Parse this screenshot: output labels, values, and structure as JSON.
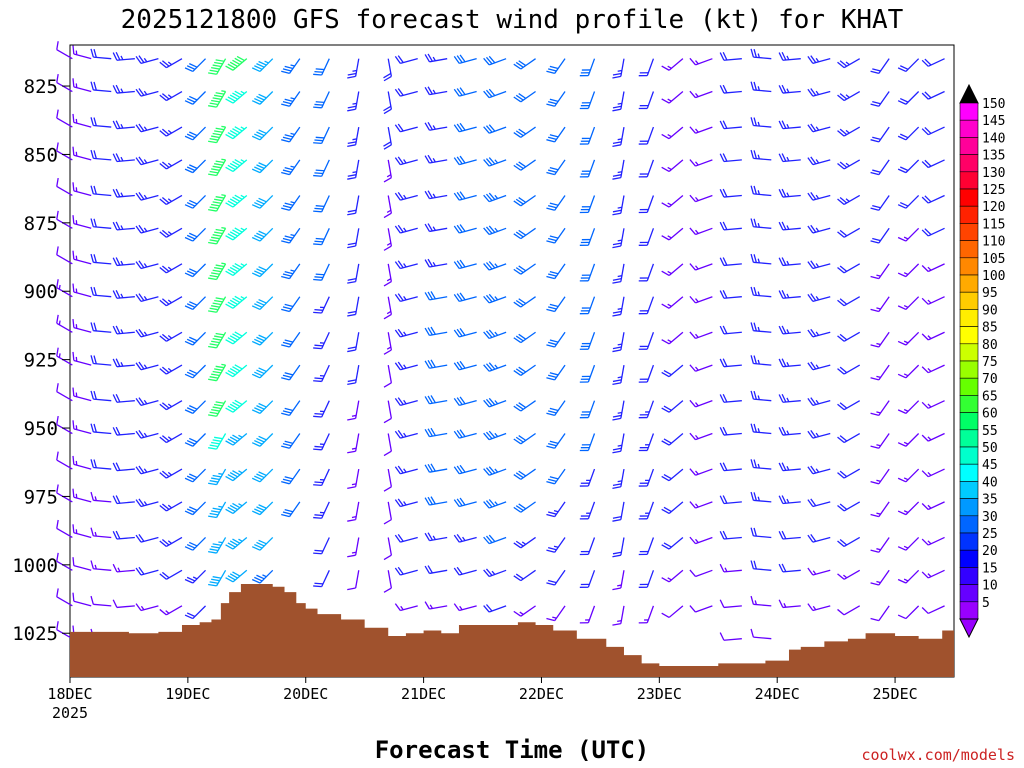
{
  "chart_data": {
    "type": "wind-barb-time-height",
    "title": "2025121800 GFS forecast wind profile (kt) for KHAT",
    "xlabel": "Forecast Time (UTC)",
    "ylabel": "",
    "credit": "coolwx.com/models",
    "x_ticks": [
      {
        "label": "18DEC",
        "sub": "2025",
        "day": 0
      },
      {
        "label": "19DEC",
        "day": 1
      },
      {
        "label": "20DEC",
        "day": 2
      },
      {
        "label": "21DEC",
        "day": 3
      },
      {
        "label": "22DEC",
        "day": 4
      },
      {
        "label": "23DEC",
        "day": 5
      },
      {
        "label": "24DEC",
        "day": 6
      },
      {
        "label": "25DEC",
        "day": 7
      }
    ],
    "xlim_days": [
      0,
      7.5
    ],
    "ylim_hpa": [
      1041,
      810
    ],
    "y_ticks": [
      825,
      850,
      875,
      900,
      925,
      950,
      975,
      1000,
      1025
    ],
    "levels_hpa": [
      815,
      827,
      840,
      852,
      865,
      877,
      890,
      902,
      915,
      927,
      940,
      952,
      965,
      977,
      990,
      1002,
      1015,
      1027
    ],
    "surface_color": "#a0522d",
    "surface_pressure": [
      [
        0.0,
        1024.5
      ],
      [
        0.5,
        1025
      ],
      [
        0.75,
        1024.5
      ],
      [
        0.95,
        1022
      ],
      [
        1.1,
        1021
      ],
      [
        1.2,
        1020
      ],
      [
        1.28,
        1014
      ],
      [
        1.35,
        1010
      ],
      [
        1.45,
        1007
      ],
      [
        1.6,
        1007
      ],
      [
        1.72,
        1008
      ],
      [
        1.82,
        1010
      ],
      [
        1.92,
        1014
      ],
      [
        2.0,
        1016
      ],
      [
        2.1,
        1018
      ],
      [
        2.3,
        1020
      ],
      [
        2.5,
        1023
      ],
      [
        2.7,
        1026
      ],
      [
        2.85,
        1025
      ],
      [
        3.0,
        1024
      ],
      [
        3.15,
        1025
      ],
      [
        3.3,
        1022
      ],
      [
        3.6,
        1022
      ],
      [
        3.8,
        1021
      ],
      [
        3.95,
        1022
      ],
      [
        4.1,
        1024
      ],
      [
        4.3,
        1027
      ],
      [
        4.55,
        1030
      ],
      [
        4.7,
        1033
      ],
      [
        4.85,
        1036
      ],
      [
        5.0,
        1037
      ],
      [
        5.3,
        1037
      ],
      [
        5.5,
        1036
      ],
      [
        5.9,
        1035
      ],
      [
        6.1,
        1031
      ],
      [
        6.2,
        1030
      ],
      [
        6.4,
        1028
      ],
      [
        6.6,
        1027
      ],
      [
        6.75,
        1025
      ],
      [
        7.0,
        1026
      ],
      [
        7.2,
        1027
      ],
      [
        7.4,
        1024
      ],
      [
        7.5,
        1024
      ]
    ],
    "wind_columns": [
      {
        "t": 0.02,
        "dir": 300,
        "spd": [
          10,
          10,
          10,
          10,
          10,
          10,
          10,
          15,
          15,
          15,
          10,
          10,
          10,
          10,
          10,
          10,
          10,
          10
        ]
      },
      {
        "t": 0.18,
        "dir": 285,
        "spd": [
          15,
          15,
          15,
          15,
          15,
          15,
          15,
          15,
          15,
          15,
          15,
          15,
          15,
          15,
          15,
          10,
          10,
          10
        ]
      },
      {
        "t": 0.35,
        "dir": 275,
        "spd": [
          20,
          20,
          20,
          20,
          20,
          20,
          20,
          20,
          20,
          20,
          20,
          20,
          20,
          15,
          15,
          15,
          10,
          10
        ]
      },
      {
        "t": 0.55,
        "dir": 265,
        "spd": [
          25,
          25,
          25,
          25,
          25,
          25,
          25,
          25,
          25,
          25,
          20,
          20,
          20,
          20,
          20,
          15,
          10,
          10
        ]
      },
      {
        "t": 0.75,
        "dir": 255,
        "spd": [
          25,
          25,
          25,
          25,
          25,
          25,
          25,
          25,
          25,
          25,
          25,
          25,
          25,
          25,
          20,
          20,
          15,
          10
        ]
      },
      {
        "t": 0.95,
        "dir": 240,
        "spd": [
          25,
          25,
          25,
          25,
          25,
          25,
          25,
          25,
          25,
          25,
          25,
          25,
          25,
          25,
          25,
          20,
          15,
          10
        ]
      },
      {
        "t": 1.15,
        "dir": 225,
        "spd": [
          30,
          30,
          30,
          30,
          30,
          30,
          30,
          30,
          30,
          30,
          30,
          30,
          30,
          30,
          30,
          25,
          20,
          15
        ]
      },
      {
        "t": 1.32,
        "dir": 210,
        "spd": [
          60,
          65,
          65,
          65,
          65,
          65,
          65,
          60,
          60,
          65,
          60,
          50,
          45,
          45,
          45,
          40,
          0,
          0
        ]
      },
      {
        "t": 1.5,
        "dir": 230,
        "spd": [
          60,
          55,
          55,
          55,
          55,
          55,
          55,
          55,
          50,
          50,
          50,
          45,
          45,
          45,
          45,
          40,
          0,
          0
        ]
      },
      {
        "t": 1.72,
        "dir": 225,
        "spd": [
          45,
          40,
          40,
          40,
          40,
          40,
          40,
          40,
          40,
          40,
          40,
          40,
          40,
          40,
          40,
          35,
          0,
          0
        ]
      },
      {
        "t": 1.95,
        "dir": 215,
        "spd": [
          35,
          35,
          35,
          35,
          35,
          35,
          35,
          30,
          30,
          30,
          30,
          30,
          30,
          30,
          0,
          0,
          0,
          0
        ]
      },
      {
        "t": 2.2,
        "dir": 205,
        "spd": [
          30,
          30,
          30,
          30,
          30,
          30,
          30,
          25,
          25,
          25,
          25,
          25,
          25,
          25,
          20,
          20,
          0,
          0
        ]
      },
      {
        "t": 2.45,
        "dir": 190,
        "spd": [
          25,
          25,
          25,
          25,
          20,
          20,
          20,
          20,
          20,
          20,
          15,
          15,
          15,
          15,
          15,
          10,
          0,
          0
        ]
      },
      {
        "t": 2.7,
        "dir": 170,
        "spd": [
          20,
          20,
          20,
          15,
          15,
          15,
          15,
          15,
          15,
          10,
          10,
          10,
          10,
          10,
          10,
          10,
          0,
          0
        ]
      },
      {
        "t": 2.95,
        "dir": 255,
        "spd": [
          20,
          20,
          20,
          25,
          25,
          25,
          25,
          25,
          25,
          25,
          25,
          25,
          25,
          25,
          20,
          20,
          15,
          0
        ]
      },
      {
        "t": 3.2,
        "dir": 260,
        "spd": [
          25,
          25,
          25,
          25,
          25,
          25,
          25,
          30,
          30,
          30,
          30,
          30,
          30,
          30,
          25,
          20,
          15,
          0
        ]
      },
      {
        "t": 3.45,
        "dir": 255,
        "spd": [
          30,
          30,
          30,
          30,
          30,
          30,
          30,
          30,
          30,
          30,
          30,
          30,
          30,
          30,
          25,
          20,
          15,
          0
        ]
      },
      {
        "t": 3.7,
        "dir": 250,
        "spd": [
          30,
          30,
          30,
          35,
          35,
          35,
          35,
          35,
          35,
          35,
          35,
          35,
          35,
          35,
          30,
          25,
          20,
          0
        ]
      },
      {
        "t": 3.95,
        "dir": 235,
        "spd": [
          30,
          30,
          30,
          30,
          30,
          30,
          30,
          30,
          30,
          30,
          30,
          30,
          30,
          30,
          25,
          20,
          15,
          0
        ]
      },
      {
        "t": 4.2,
        "dir": 215,
        "spd": [
          30,
          30,
          30,
          30,
          30,
          30,
          30,
          30,
          30,
          30,
          30,
          30,
          30,
          25,
          25,
          20,
          15,
          0
        ]
      },
      {
        "t": 4.45,
        "dir": 200,
        "spd": [
          30,
          30,
          30,
          30,
          30,
          30,
          30,
          30,
          30,
          30,
          30,
          30,
          25,
          25,
          20,
          20,
          15,
          0
        ]
      },
      {
        "t": 4.7,
        "dir": 190,
        "spd": [
          25,
          25,
          25,
          25,
          25,
          25,
          25,
          25,
          25,
          25,
          25,
          25,
          25,
          20,
          20,
          15,
          15,
          0
        ]
      },
      {
        "t": 4.95,
        "dir": 200,
        "spd": [
          20,
          20,
          20,
          20,
          20,
          20,
          20,
          20,
          20,
          20,
          25,
          25,
          25,
          25,
          20,
          20,
          15,
          0
        ]
      },
      {
        "t": 5.2,
        "dir": 230,
        "spd": [
          15,
          15,
          15,
          15,
          15,
          15,
          15,
          15,
          15,
          20,
          20,
          20,
          20,
          20,
          20,
          15,
          10,
          0
        ]
      },
      {
        "t": 5.45,
        "dir": 250,
        "spd": [
          15,
          15,
          15,
          15,
          15,
          15,
          15,
          15,
          15,
          15,
          15,
          15,
          15,
          15,
          15,
          10,
          10,
          0
        ]
      },
      {
        "t": 5.7,
        "dir": 265,
        "spd": [
          20,
          20,
          20,
          20,
          20,
          20,
          20,
          20,
          20,
          20,
          20,
          20,
          20,
          20,
          20,
          15,
          10,
          10
        ]
      },
      {
        "t": 5.95,
        "dir": 275,
        "spd": [
          25,
          25,
          25,
          25,
          25,
          25,
          25,
          25,
          25,
          25,
          25,
          25,
          25,
          25,
          20,
          20,
          15,
          10
        ]
      },
      {
        "t": 6.2,
        "dir": 265,
        "spd": [
          25,
          25,
          25,
          25,
          25,
          25,
          25,
          25,
          25,
          25,
          25,
          25,
          25,
          25,
          20,
          20,
          15,
          0
        ]
      },
      {
        "t": 6.45,
        "dir": 255,
        "spd": [
          25,
          25,
          25,
          25,
          25,
          25,
          25,
          25,
          25,
          25,
          25,
          25,
          25,
          20,
          20,
          15,
          15,
          0
        ]
      },
      {
        "t": 6.7,
        "dir": 240,
        "spd": [
          25,
          25,
          25,
          25,
          25,
          20,
          20,
          20,
          20,
          20,
          20,
          20,
          20,
          20,
          20,
          15,
          10,
          0
        ]
      },
      {
        "t": 6.95,
        "dir": 215,
        "spd": [
          20,
          20,
          20,
          20,
          20,
          20,
          15,
          15,
          15,
          15,
          15,
          15,
          15,
          15,
          15,
          15,
          10,
          0
        ]
      },
      {
        "t": 7.2,
        "dir": 225,
        "spd": [
          20,
          20,
          20,
          20,
          20,
          15,
          15,
          15,
          15,
          15,
          15,
          15,
          15,
          15,
          15,
          15,
          10,
          0
        ]
      },
      {
        "t": 7.42,
        "dir": 245,
        "spd": [
          20,
          20,
          20,
          20,
          20,
          20,
          15,
          15,
          15,
          15,
          15,
          15,
          15,
          15,
          15,
          15,
          10,
          0
        ]
      }
    ],
    "colorbar": {
      "labels": [
        "150",
        "145",
        "140",
        "135",
        "130",
        "125",
        "120",
        "115",
        "110",
        "105",
        "100",
        "95",
        "90",
        "85",
        "80",
        "75",
        "70",
        "65",
        "60",
        "55",
        "50",
        "45",
        "40",
        "35",
        "30",
        "25",
        "20",
        "15",
        "10",
        "5"
      ],
      "colors": [
        "#ff00ff",
        "#ff00cc",
        "#ff0099",
        "#ff0066",
        "#ff0033",
        "#ff0000",
        "#ff2200",
        "#ff4400",
        "#ff6600",
        "#ff8800",
        "#ffaa00",
        "#ffcc00",
        "#ffee00",
        "#ffff00",
        "#ccff00",
        "#99ff00",
        "#66ff00",
        "#33ff33",
        "#00ff66",
        "#00ff99",
        "#00ffcc",
        "#00ffff",
        "#00ccff",
        "#0099ff",
        "#0066ff",
        "#0033ff",
        "#0000ff",
        "#3300ff",
        "#6600ff",
        "#9900ff"
      ],
      "top_color": "#000000",
      "bottom_color": "#9900ff"
    }
  }
}
